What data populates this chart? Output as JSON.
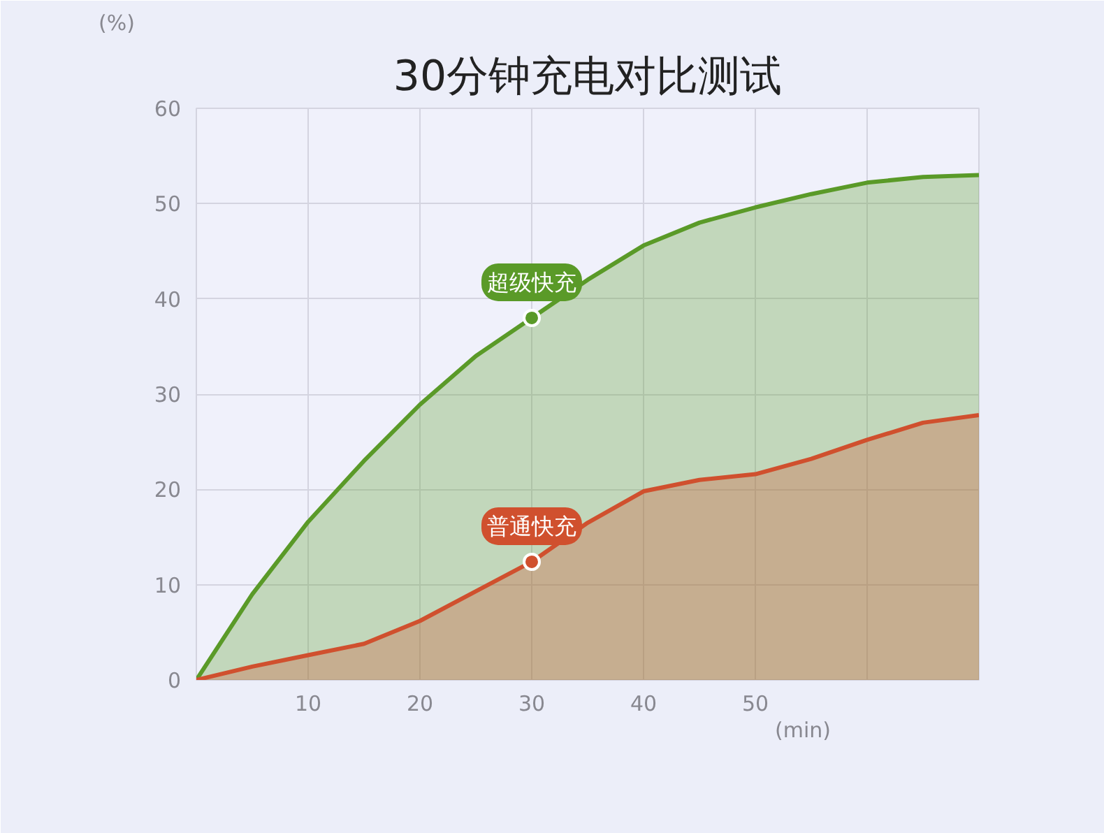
{
  "chart_data": {
    "type": "area",
    "title": "30分钟充电对比测试",
    "xlabel": "(min)",
    "ylabel": "(%)",
    "x": [
      0,
      5,
      10,
      15,
      20,
      25,
      30,
      35,
      40,
      45,
      50,
      55,
      60,
      65,
      70
    ],
    "series": [
      {
        "color": "#5a9a28",
        "values": [
          0,
          9,
          16.6,
          23,
          28.9,
          34,
          38,
          42,
          45.6,
          48,
          49.6,
          51,
          52.2,
          52.8,
          53
        ]
      },
      {
        "color": "#d0502e",
        "values": [
          0,
          1.4,
          2.6,
          3.8,
          6.2,
          9.3,
          12.4,
          16.5,
          19.8,
          21,
          21.6,
          23.2,
          25.2,
          27,
          27.8
        ]
      }
    ],
    "annotations": [
      {
        "text": "超级快充",
        "x": 30,
        "y": 38
      },
      {
        "text": "普通快充",
        "x": 30,
        "y": 12.4
      }
    ],
    "xlim": [
      0,
      70
    ],
    "ylim": [
      0,
      60
    ],
    "xticks": [
      10,
      20,
      30,
      40,
      50,
      {
        "value": 60,
        "label": null
      }
    ],
    "yticks": [
      0,
      10,
      20,
      30,
      40,
      50,
      60
    ],
    "grid": true
  }
}
